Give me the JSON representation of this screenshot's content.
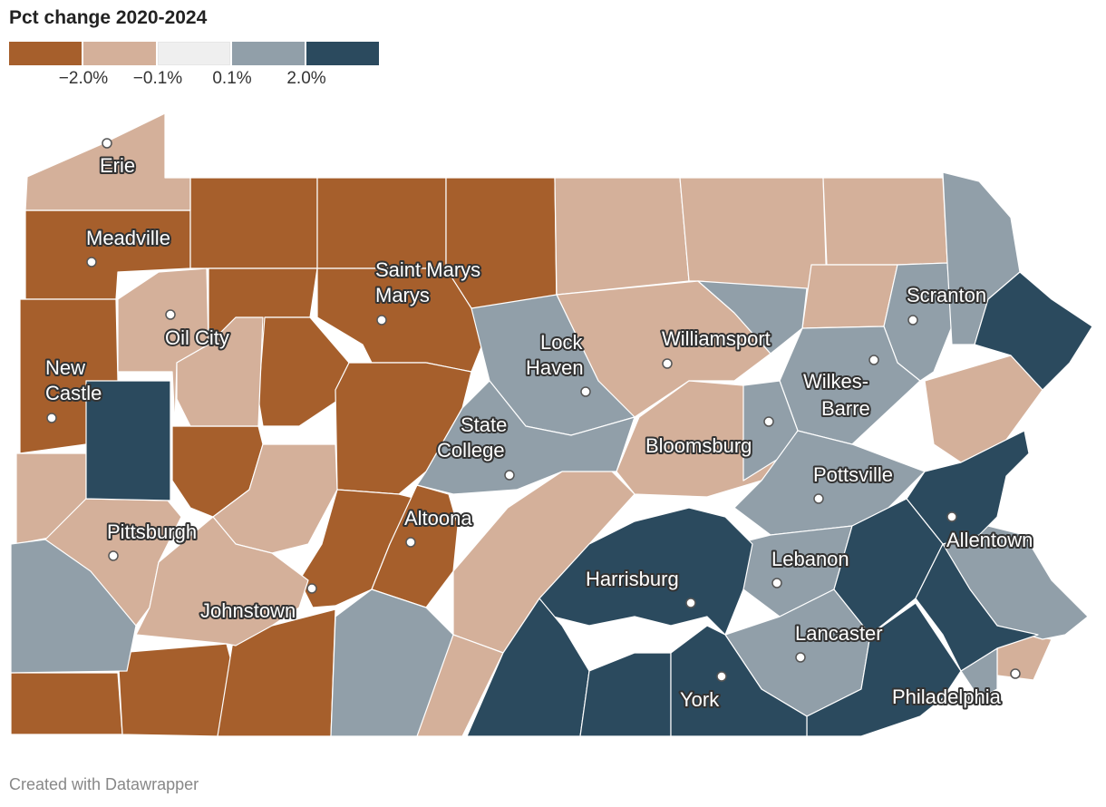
{
  "title": "Pct change 2020-2024",
  "legend": {
    "colors": [
      "#a65f2c",
      "#d4b09a",
      "#efefef",
      "#919fa9",
      "#2b4a5e"
    ],
    "ticks": [
      "−2.0%",
      "−0.1%",
      "0.1%",
      "2.0%"
    ]
  },
  "cities": [
    "Erie",
    "Meadville",
    "Saint Marys",
    "Oil City",
    "New Castle",
    "Lock Haven",
    "Williamsport",
    "Scranton",
    "Wilkes-Barre",
    "State College",
    "Bloomsburg",
    "Pottsville",
    "Altoona",
    "Pittsburgh",
    "Allentown",
    "Harrisburg",
    "Lebanon",
    "Johnstown",
    "Lancaster",
    "York",
    "Philadelphia"
  ],
  "footer": "Created with Datawrapper"
}
